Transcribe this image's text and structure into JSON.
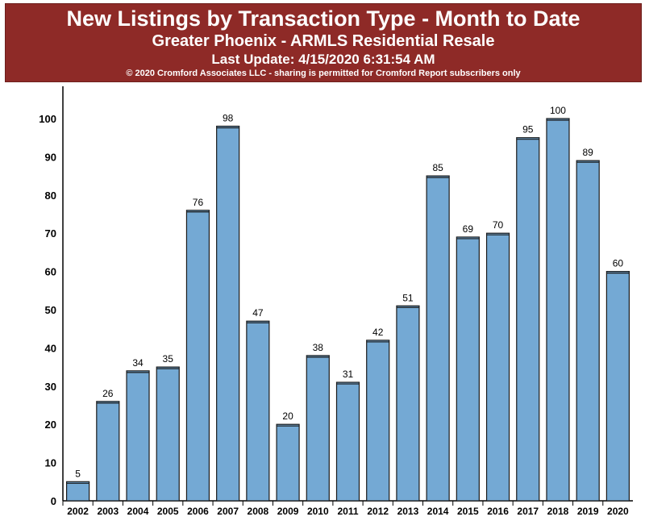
{
  "header": {
    "title": "New Listings by Transaction Type -  Month to Date",
    "subtitle": "Greater Phoenix - ARMLS Residential Resale",
    "last_update": "Last Update: 4/15/2020 6:31:54 AM",
    "copyright": "© 2020 Cromford Associates LLC - sharing is permitted for Cromford Report subscribers only"
  },
  "colors": {
    "banner": "#8e2a27",
    "bar_fill": "#74a9d4",
    "bar_stroke": "#1a1a1a"
  },
  "chart_data": {
    "type": "bar",
    "title": "New Listings by Transaction Type -  Month to Date",
    "xlabel": "",
    "ylabel": "",
    "categories": [
      "2002",
      "2003",
      "2004",
      "2005",
      "2006",
      "2007",
      "2008",
      "2009",
      "2010",
      "2011",
      "2012",
      "2013",
      "2014",
      "2015",
      "2016",
      "2017",
      "2018",
      "2019",
      "2020"
    ],
    "values": [
      5,
      26,
      34,
      35,
      76,
      98,
      47,
      20,
      38,
      31,
      42,
      51,
      85,
      69,
      70,
      95,
      100,
      89,
      60
    ],
    "ylim": [
      0,
      100
    ],
    "yticks": [
      0,
      10,
      20,
      30,
      40,
      50,
      60,
      70,
      80,
      90,
      100
    ],
    "data_labels": true,
    "grid": false,
    "legend": "none"
  }
}
